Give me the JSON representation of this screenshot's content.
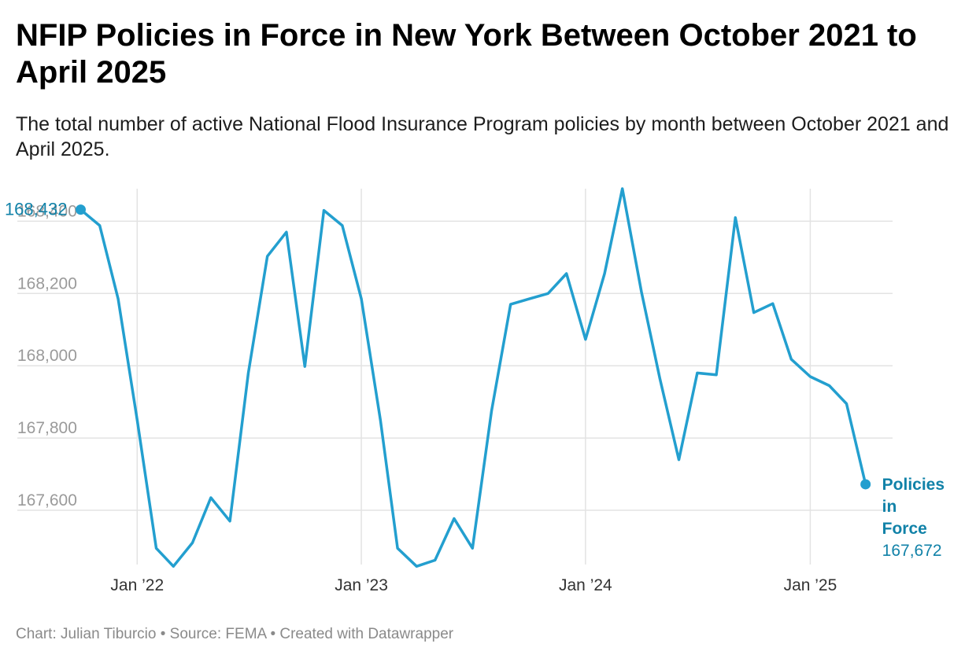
{
  "header": {
    "title": "NFIP Policies in Force in New York Between October 2021 to April 2025",
    "subtitle": "The total number of active National Flood Insurance Program policies by month between October 2021 and April 2025."
  },
  "footer": {
    "text": "Chart: Julian Tiburcio • Source: FEMA • Created with Datawrapper"
  },
  "colors": {
    "line": "#239fcf",
    "label": "#1182a8",
    "grid": "#e3e3e3"
  },
  "chart_data": {
    "type": "line",
    "title": "NFIP Policies in Force in New York Between October 2021 to April 2025",
    "xlabel": "",
    "ylabel": "",
    "ylim": [
      167450,
      168490
    ],
    "xlim": [
      "2021-09-15",
      "2025-05-15"
    ],
    "grid": true,
    "legend": "none",
    "y_ticks": [
      {
        "value": 167600,
        "label": "167,600"
      },
      {
        "value": 167800,
        "label": "167,800"
      },
      {
        "value": 168000,
        "label": "168,000"
      },
      {
        "value": 168200,
        "label": "168,200"
      },
      {
        "value": 168400,
        "label": "168,400"
      }
    ],
    "x_ticks": [
      {
        "value": "2022-01",
        "label": "Jan ’22"
      },
      {
        "value": "2023-01",
        "label": "Jan ’23"
      },
      {
        "value": "2024-01",
        "label": "Jan ’24"
      },
      {
        "value": "2025-01",
        "label": "Jan ’25"
      }
    ],
    "series": [
      {
        "name": "Policies in Force",
        "x": [
          "2021-10",
          "2021-11",
          "2021-12",
          "2022-01",
          "2022-02",
          "2022-03",
          "2022-04",
          "2022-05",
          "2022-06",
          "2022-07",
          "2022-08",
          "2022-09",
          "2022-10",
          "2022-11",
          "2022-12",
          "2023-01",
          "2023-02",
          "2023-03",
          "2023-04",
          "2023-05",
          "2023-06",
          "2023-07",
          "2023-08",
          "2023-09",
          "2023-10",
          "2023-11",
          "2023-12",
          "2024-01",
          "2024-02",
          "2024-03",
          "2024-04",
          "2024-05",
          "2024-06",
          "2024-07",
          "2024-08",
          "2024-09",
          "2024-10",
          "2024-11",
          "2024-12",
          "2025-01",
          "2025-02",
          "2025-03",
          "2025-04"
        ],
        "values": [
          168432,
          168388,
          168185,
          167850,
          167495,
          167445,
          167510,
          167635,
          167570,
          167980,
          168303,
          168370,
          167998,
          168430,
          168388,
          168185,
          167850,
          167495,
          167445,
          167462,
          167577,
          167495,
          167875,
          168170,
          168185,
          168200,
          168255,
          168073,
          168255,
          168490,
          168205,
          167965,
          167740,
          167980,
          167975,
          168410,
          168147,
          168172,
          168018,
          167970,
          167945,
          167895,
          167672
        ]
      }
    ],
    "annotations": {
      "start_label": "168,432",
      "end_label_name": [
        "Policies",
        "in",
        "Force"
      ],
      "end_label_value": "167,672"
    }
  }
}
